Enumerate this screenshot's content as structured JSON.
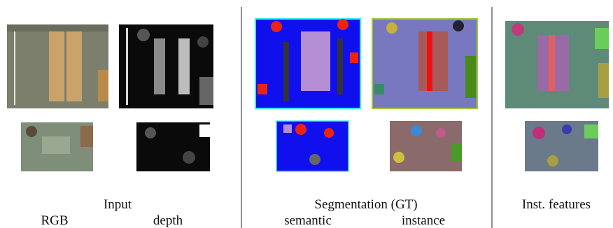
{
  "panels": [
    {
      "title": "Input",
      "columns": [
        "RGB",
        "depth"
      ]
    },
    {
      "title": "Segmentation (GT)",
      "columns": [
        "semantic",
        "instance"
      ]
    },
    {
      "title": "Inst. features"
    }
  ]
}
